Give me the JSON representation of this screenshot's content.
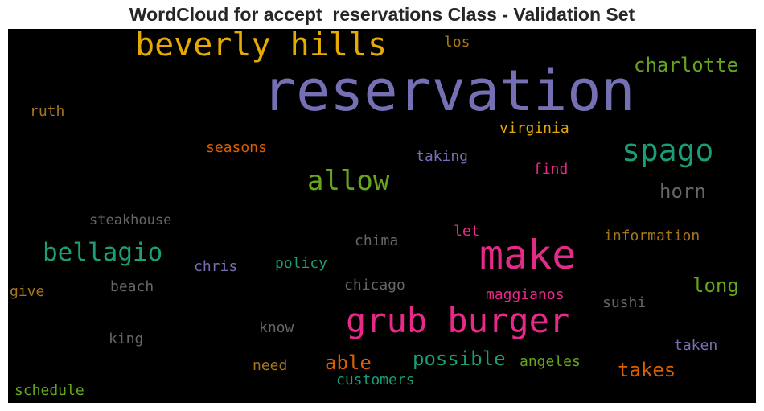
{
  "chart_data": {
    "type": "wordcloud",
    "title": "WordCloud for accept_reservations Class - Validation Set",
    "background": "#000000",
    "words": [
      {
        "text": "reservation",
        "color": "#7570b3"
      },
      {
        "text": "make",
        "color": "#e7298a"
      },
      {
        "text": "grub burger",
        "color": "#e7298a"
      },
      {
        "text": "beverly hills",
        "color": "#e6ab02"
      },
      {
        "text": "spago",
        "color": "#1b9e77"
      },
      {
        "text": "allow",
        "color": "#66a61e"
      },
      {
        "text": "bellagio",
        "color": "#1b9e77"
      },
      {
        "text": "charlotte",
        "color": "#66a61e"
      },
      {
        "text": "horn",
        "color": "#666666"
      },
      {
        "text": "long",
        "color": "#66a61e"
      },
      {
        "text": "possible",
        "color": "#1b9e77"
      },
      {
        "text": "takes",
        "color": "#d95f02"
      },
      {
        "text": "able",
        "color": "#d95f02"
      },
      {
        "text": "virginia",
        "color": "#e6ab02"
      },
      {
        "text": "seasons",
        "color": "#d95f02"
      },
      {
        "text": "taking",
        "color": "#7570b3"
      },
      {
        "text": "find",
        "color": "#e7298a"
      },
      {
        "text": "ruth",
        "color": "#a6761d"
      },
      {
        "text": "los",
        "color": "#a6761d"
      },
      {
        "text": "steakhouse",
        "color": "#666666"
      },
      {
        "text": "information",
        "color": "#a6761d"
      },
      {
        "text": "let",
        "color": "#e7298a"
      },
      {
        "text": "chima",
        "color": "#666666"
      },
      {
        "text": "chris",
        "color": "#7570b3"
      },
      {
        "text": "policy",
        "color": "#1b9e77"
      },
      {
        "text": "chicago",
        "color": "#666666"
      },
      {
        "text": "maggianos",
        "color": "#e7298a"
      },
      {
        "text": "beach",
        "color": "#666666"
      },
      {
        "text": "give",
        "color": "#a6761d"
      },
      {
        "text": "sushi",
        "color": "#666666"
      },
      {
        "text": "know",
        "color": "#666666"
      },
      {
        "text": "king",
        "color": "#666666"
      },
      {
        "text": "taken",
        "color": "#7570b3"
      },
      {
        "text": "need",
        "color": "#a6761d"
      },
      {
        "text": "angeles",
        "color": "#66a61e"
      },
      {
        "text": "customers",
        "color": "#1b9e77"
      },
      {
        "text": "schedule",
        "color": "#66a61e"
      }
    ]
  }
}
